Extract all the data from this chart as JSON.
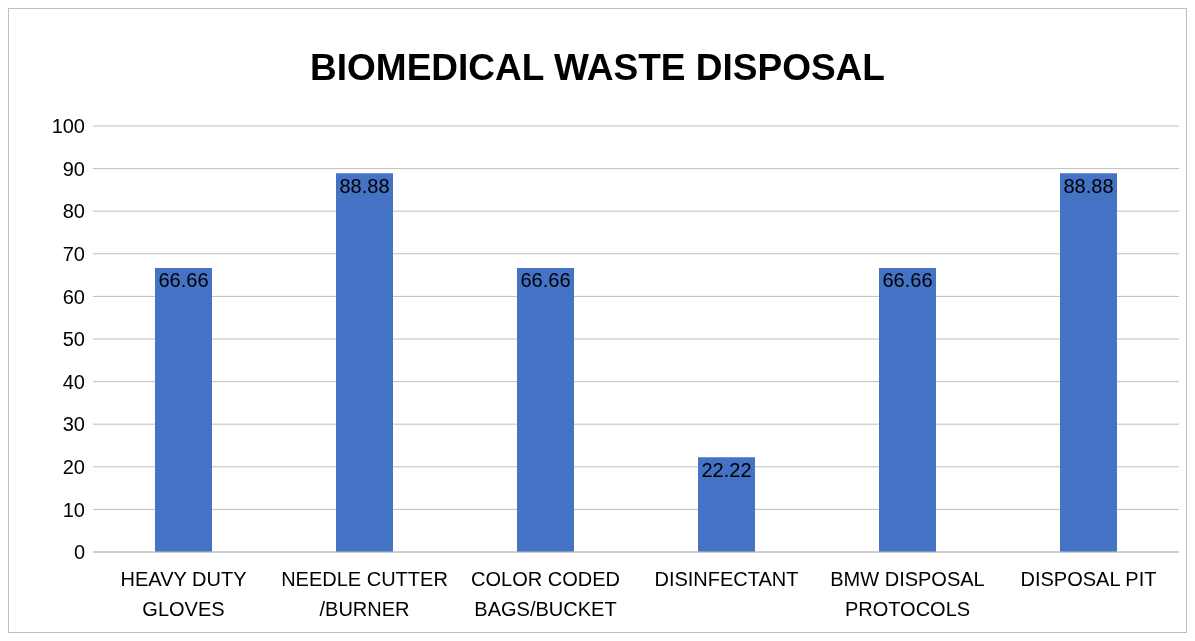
{
  "chart_data": {
    "type": "bar",
    "title": "BIOMEDICAL WASTE DISPOSAL",
    "categories": [
      "HEAVY DUTY GLOVES",
      "NEEDLE CUTTER /BURNER",
      "COLOR CODED BAGS/BUCKET",
      "DISINFECTANT",
      "BMW DISPOSAL PROTOCOLS",
      "DISPOSAL PIT"
    ],
    "values": [
      66.66,
      88.88,
      66.66,
      22.22,
      66.66,
      88.88
    ],
    "color": "#4472c4",
    "ylim": [
      0,
      100
    ],
    "yticks": [
      0,
      10,
      20,
      30,
      40,
      50,
      60,
      70,
      80,
      90,
      100
    ],
    "grid": "y",
    "data_labels": true,
    "legend": false
  }
}
